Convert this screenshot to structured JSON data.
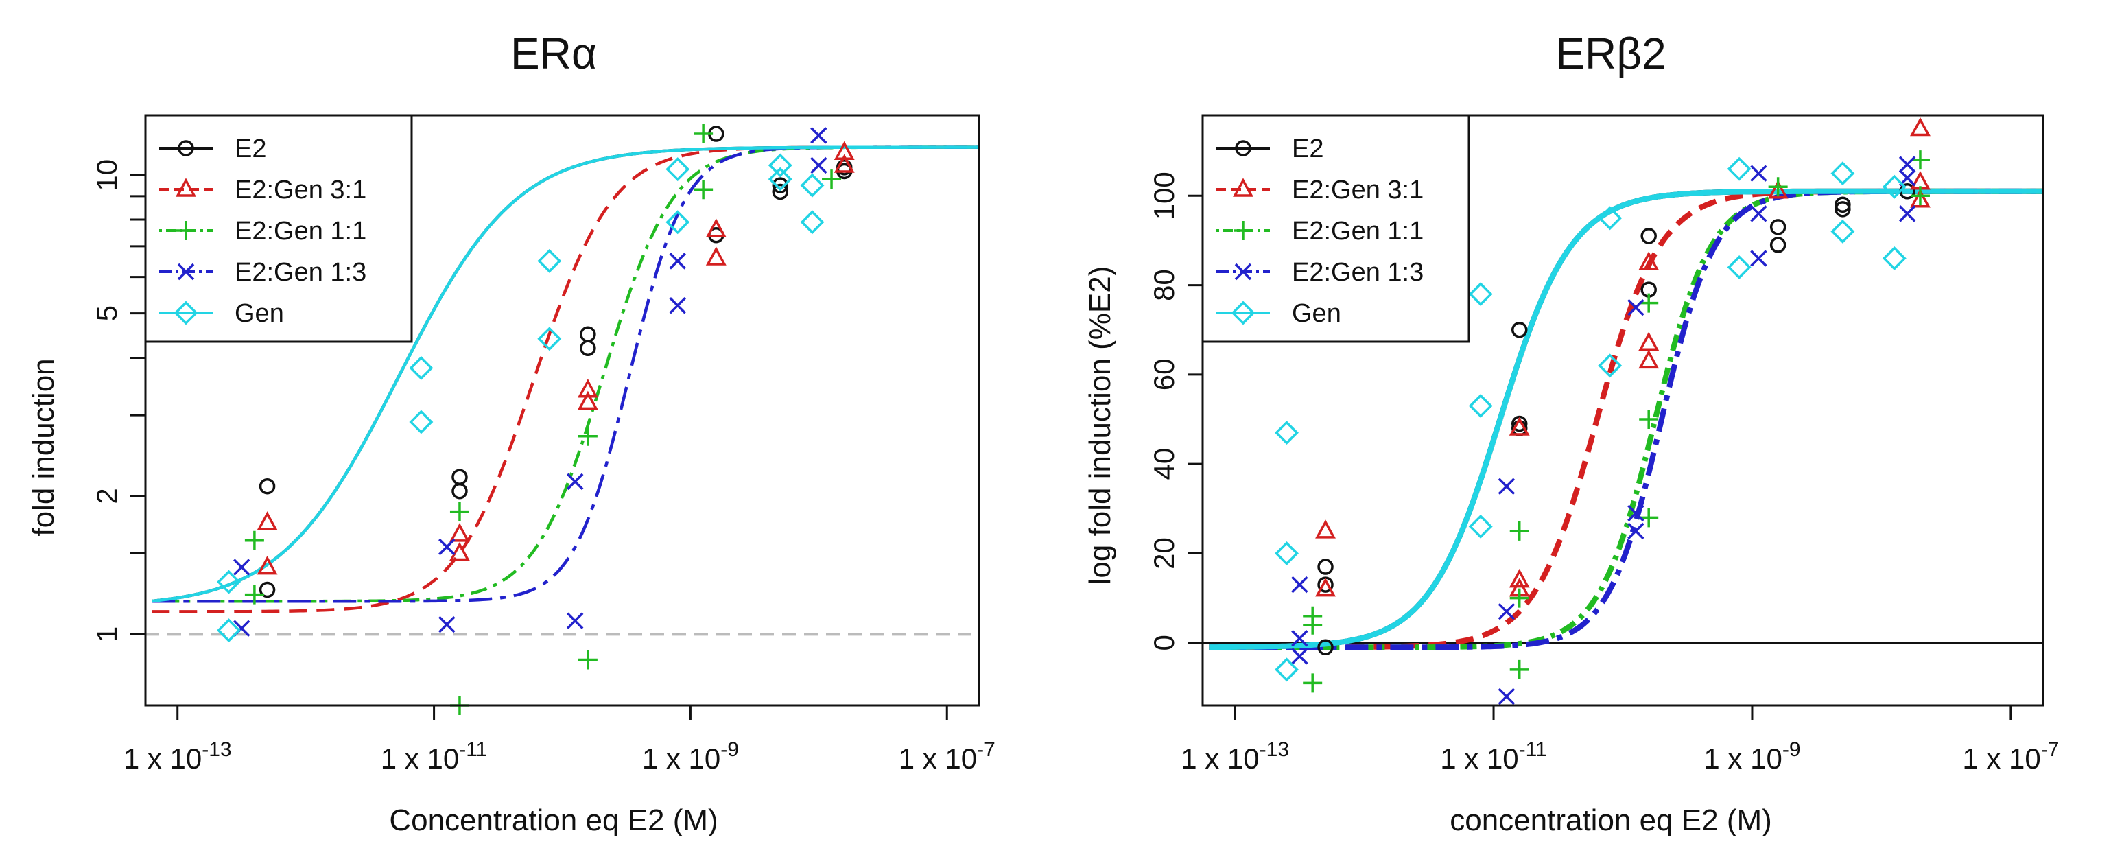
{
  "chart_data": [
    {
      "type": "scatter",
      "title": "ERα",
      "xlabel": "Concentration eq E2 (M)",
      "ylabel": "fold induction",
      "x_scale": "log10",
      "y_scale": "log",
      "xlim_log10": [
        -13.25,
        -6.75
      ],
      "ylim": [
        0.7,
        13.5
      ],
      "x_ticks": [
        {
          "value": -13,
          "label": "1 x 10",
          "exp": "-13"
        },
        {
          "value": -11,
          "label": "1 x 10",
          "exp": "-11"
        },
        {
          "value": -9,
          "label": "1 x 10",
          "exp": "-9"
        },
        {
          "value": -7,
          "label": "1 x 10",
          "exp": "-7"
        }
      ],
      "y_ticks": [
        {
          "value": 1,
          "label": "1"
        },
        {
          "value": 2,
          "label": "2"
        },
        {
          "value": 5,
          "label": "5"
        },
        {
          "value": 10,
          "label": "10"
        }
      ],
      "y_minor_ticks": [
        1.5,
        3,
        4,
        6,
        7,
        8,
        9
      ],
      "reference_line": {
        "y": 1,
        "style": "dashed",
        "color": "#bbbbbb"
      },
      "legend_position": "top-left",
      "series": [
        {
          "name": "E2",
          "color": "#111111",
          "marker": "circle",
          "dash": "solid",
          "fit": {
            "bottom": 1.15,
            "top": 11.5,
            "log_ec50": -10.8,
            "hill": 0.5
          },
          "points": [
            [
              -12.3,
              2.1
            ],
            [
              -12.3,
              1.25
            ],
            [
              -10.8,
              2.2
            ],
            [
              -10.8,
              2.05
            ],
            [
              -9.8,
              4.5
            ],
            [
              -9.8,
              4.2
            ],
            [
              -8.8,
              12.3
            ],
            [
              -8.8,
              7.4
            ],
            [
              -8.3,
              9.5
            ],
            [
              -8.3,
              9.2
            ],
            [
              -7.8,
              10.4
            ],
            [
              -7.8,
              10.2
            ]
          ]
        },
        {
          "name": "E2:Gen 3:1",
          "color": "#d42020",
          "marker": "triangle",
          "dash": "dashed",
          "fit": {
            "bottom": 1.12,
            "top": 11.5,
            "log_ec50": -9.9,
            "hill": 0.75
          },
          "points": [
            [
              -12.3,
              1.75
            ],
            [
              -12.3,
              1.4
            ],
            [
              -10.8,
              1.65
            ],
            [
              -10.8,
              1.5
            ],
            [
              -9.8,
              3.4
            ],
            [
              -9.8,
              3.2
            ],
            [
              -8.8,
              7.6
            ],
            [
              -8.8,
              6.6
            ],
            [
              -7.8,
              11.2
            ],
            [
              -7.8,
              10.5
            ]
          ]
        },
        {
          "name": "E2:Gen 1:1",
          "color": "#22bb22",
          "marker": "plus",
          "dash": "dotdash",
          "fit": {
            "bottom": 1.18,
            "top": 11.5,
            "log_ec50": -9.4,
            "hill": 0.85
          },
          "points": [
            [
              -12.4,
              1.6
            ],
            [
              -12.4,
              1.22
            ],
            [
              -10.8,
              1.85
            ],
            [
              -10.8,
              0.7
            ],
            [
              -9.8,
              2.7
            ],
            [
              -9.8,
              0.88
            ],
            [
              -8.9,
              12.3
            ],
            [
              -8.9,
              9.3
            ],
            [
              -7.9,
              9.8
            ]
          ]
        },
        {
          "name": "E2:Gen 1:3",
          "color": "#2222cc",
          "marker": "cross",
          "dash": "longdash",
          "fit": {
            "bottom": 1.18,
            "top": 11.5,
            "log_ec50": -9.25,
            "hill": 1.05
          },
          "points": [
            [
              -12.5,
              1.4
            ],
            [
              -12.5,
              1.03
            ],
            [
              -10.9,
              1.55
            ],
            [
              -10.9,
              1.05
            ],
            [
              -9.9,
              2.15
            ],
            [
              -9.9,
              1.07
            ],
            [
              -9.1,
              6.5
            ],
            [
              -9.1,
              5.2
            ],
            [
              -8.0,
              12.2
            ],
            [
              -8.0,
              10.5
            ]
          ]
        },
        {
          "name": "Gen",
          "color": "#22d4e4",
          "marker": "diamond",
          "dash": "solid",
          "fit": {
            "bottom": 1.15,
            "top": 11.5,
            "log_ec50": -10.8,
            "hill": 0.5
          },
          "points": [
            [
              -12.6,
              1.3
            ],
            [
              -12.6,
              1.02
            ],
            [
              -11.1,
              3.8
            ],
            [
              -11.1,
              2.9
            ],
            [
              -10.1,
              6.5
            ],
            [
              -10.1,
              4.4
            ],
            [
              -9.1,
              10.3
            ],
            [
              -9.1,
              7.9
            ],
            [
              -8.3,
              10.5
            ],
            [
              -8.3,
              9.8
            ],
            [
              -8.05,
              9.5
            ],
            [
              -8.05,
              7.9
            ]
          ]
        }
      ]
    },
    {
      "type": "scatter",
      "title": "ERβ2",
      "xlabel": "concentration eq E2 (M)",
      "ylabel": "log fold induction (%E2)",
      "x_scale": "log10",
      "y_scale": "linear",
      "xlim_log10": [
        -13.25,
        -6.75
      ],
      "ylim": [
        -14,
        118
      ],
      "x_ticks": [
        {
          "value": -13,
          "label": "1 x 10",
          "exp": "-13"
        },
        {
          "value": -11,
          "label": "1 x 10",
          "exp": "-11"
        },
        {
          "value": -9,
          "label": "1 x 10",
          "exp": "-9"
        },
        {
          "value": -7,
          "label": "1 x 10",
          "exp": "-7"
        }
      ],
      "y_ticks": [
        {
          "value": 0,
          "label": "0"
        },
        {
          "value": 20,
          "label": "20"
        },
        {
          "value": 40,
          "label": "40"
        },
        {
          "value": 60,
          "label": "60"
        },
        {
          "value": 80,
          "label": "80"
        },
        {
          "value": 100,
          "label": "100"
        }
      ],
      "reference_line": {
        "y": 0,
        "style": "solid",
        "color": "#111111"
      },
      "legend_position": "top-left",
      "series": [
        {
          "name": "E2",
          "color": "#111111",
          "marker": "circle",
          "dash": "solid",
          "fit": {
            "bottom": -1,
            "top": 101,
            "log_ec50": -10.95,
            "hill": 0.75
          },
          "points": [
            [
              -12.3,
              17
            ],
            [
              -12.3,
              13
            ],
            [
              -12.3,
              -1
            ],
            [
              -10.8,
              70
            ],
            [
              -10.8,
              49
            ],
            [
              -10.8,
              48
            ],
            [
              -9.8,
              91
            ],
            [
              -9.8,
              79
            ],
            [
              -8.8,
              93
            ],
            [
              -8.8,
              89
            ],
            [
              -8.3,
              98
            ],
            [
              -8.3,
              97
            ],
            [
              -7.8,
              101
            ]
          ]
        },
        {
          "name": "E2:Gen 3:1",
          "color": "#d42020",
          "marker": "triangle",
          "dash": "dashed",
          "fit": {
            "bottom": -1,
            "top": 101,
            "log_ec50": -10.2,
            "hill": 0.85
          },
          "points": [
            [
              -12.3,
              25
            ],
            [
              -12.3,
              12
            ],
            [
              -10.8,
              48
            ],
            [
              -10.8,
              14
            ],
            [
              -10.8,
              12
            ],
            [
              -9.8,
              85
            ],
            [
              -9.8,
              67
            ],
            [
              -9.8,
              63
            ],
            [
              -8.8,
              101
            ],
            [
              -7.7,
              115
            ],
            [
              -7.7,
              103
            ],
            [
              -7.7,
              99
            ]
          ]
        },
        {
          "name": "E2:Gen 1:1",
          "color": "#22bb22",
          "marker": "plus",
          "dash": "dotdash",
          "fit": {
            "bottom": -1,
            "top": 101,
            "log_ec50": -9.75,
            "hill": 0.95
          },
          "points": [
            [
              -12.4,
              6
            ],
            [
              -12.4,
              4
            ],
            [
              -12.4,
              -9
            ],
            [
              -10.8,
              25
            ],
            [
              -10.8,
              10
            ],
            [
              -10.8,
              -6
            ],
            [
              -9.8,
              76
            ],
            [
              -9.8,
              50
            ],
            [
              -9.8,
              28
            ],
            [
              -8.8,
              102
            ],
            [
              -7.7,
              108
            ],
            [
              -7.7,
              100
            ]
          ]
        },
        {
          "name": "E2:Gen 1:3",
          "color": "#2222cc",
          "marker": "cross",
          "dash": "longdash",
          "fit": {
            "bottom": -1,
            "top": 101,
            "log_ec50": -9.7,
            "hill": 1.0
          },
          "points": [
            [
              -12.5,
              13
            ],
            [
              -12.5,
              1
            ],
            [
              -12.5,
              -3
            ],
            [
              -10.9,
              35
            ],
            [
              -10.9,
              7
            ],
            [
              -10.9,
              -12
            ],
            [
              -9.9,
              75
            ],
            [
              -9.9,
              29
            ],
            [
              -9.9,
              25
            ],
            [
              -8.95,
              105
            ],
            [
              -8.95,
              96
            ],
            [
              -8.95,
              86
            ],
            [
              -7.8,
              107
            ],
            [
              -7.8,
              104
            ],
            [
              -7.8,
              96
            ]
          ]
        },
        {
          "name": "Gen",
          "color": "#22d4e4",
          "marker": "diamond",
          "dash": "solid",
          "fit": {
            "bottom": -1,
            "top": 101,
            "log_ec50": -10.95,
            "hill": 0.75
          },
          "points": [
            [
              -12.6,
              47
            ],
            [
              -12.6,
              20
            ],
            [
              -12.6,
              -6
            ],
            [
              -11.1,
              78
            ],
            [
              -11.1,
              53
            ],
            [
              -11.1,
              26
            ],
            [
              -10.1,
              95
            ],
            [
              -10.1,
              62
            ],
            [
              -9.1,
              106
            ],
            [
              -9.1,
              84
            ],
            [
              -8.3,
              105
            ],
            [
              -8.3,
              92
            ],
            [
              -7.9,
              102
            ],
            [
              -7.9,
              86
            ]
          ]
        }
      ]
    }
  ]
}
